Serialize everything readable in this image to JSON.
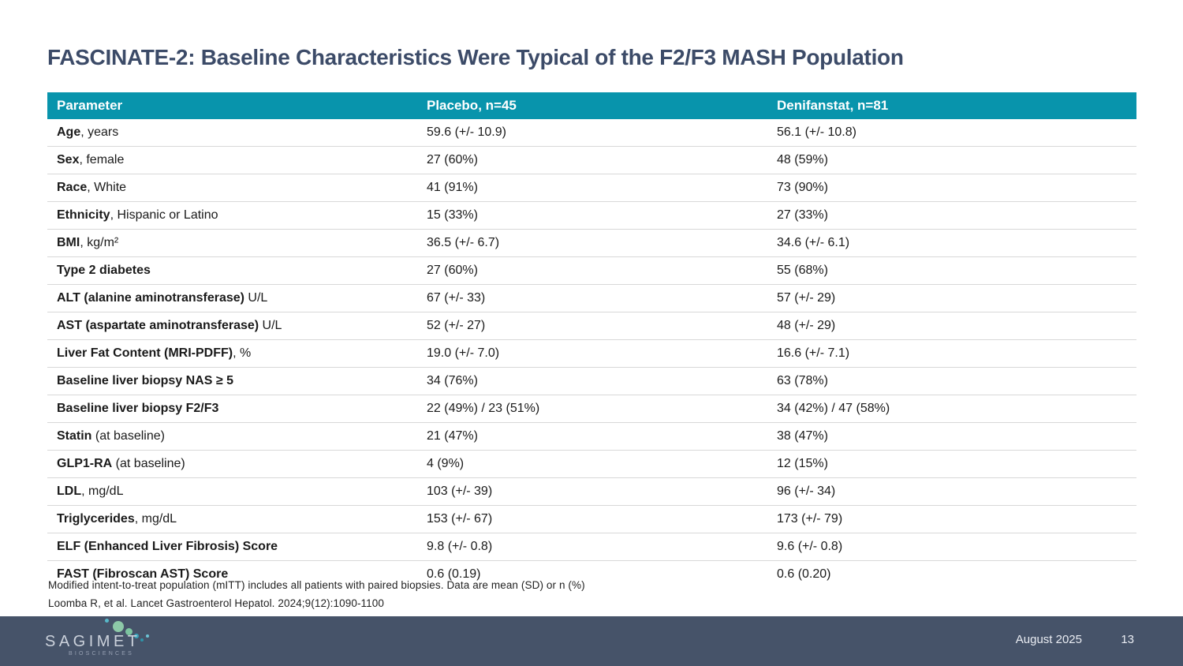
{
  "slide": {
    "title": "FASCINATE-2: Baseline Characteristics Were Typical of the F2/F3 MASH Population"
  },
  "table": {
    "columns": [
      "Parameter",
      "Placebo, n=45",
      "Denifanstat, n=81"
    ],
    "rows": [
      {
        "param_bold": "Age",
        "param_rest": ", years",
        "placebo": "59.6 (+/- 10.9)",
        "denifanstat": "56.1 (+/- 10.8)"
      },
      {
        "param_bold": "Sex",
        "param_rest": ", female",
        "placebo": "27 (60%)",
        "denifanstat": "48 (59%)"
      },
      {
        "param_bold": "Race",
        "param_rest": ", White",
        "placebo": "41 (91%)",
        "denifanstat": "73 (90%)"
      },
      {
        "param_bold": "Ethnicity",
        "param_rest": ", Hispanic or Latino",
        "placebo": "15 (33%)",
        "denifanstat": "27 (33%)"
      },
      {
        "param_bold": "BMI",
        "param_rest": ", kg/m²",
        "placebo": "36.5 (+/- 6.7)",
        "denifanstat": "34.6 (+/- 6.1)"
      },
      {
        "param_bold": "Type 2 diabetes",
        "param_rest": "",
        "placebo": "27 (60%)",
        "denifanstat": "55 (68%)"
      },
      {
        "param_bold": "ALT (alanine aminotransferase)",
        "param_rest": " U/L",
        "placebo": "67 (+/- 33)",
        "denifanstat": "57 (+/- 29)"
      },
      {
        "param_bold": "AST (aspartate aminotransferase)",
        "param_rest": " U/L",
        "placebo": "52 (+/- 27)",
        "denifanstat": "48 (+/- 29)"
      },
      {
        "param_bold": "Liver Fat Content (MRI-PDFF)",
        "param_rest": ", %",
        "placebo": "19.0 (+/- 7.0)",
        "denifanstat": "16.6 (+/- 7.1)"
      },
      {
        "param_bold": "Baseline liver biopsy NAS ≥ 5",
        "param_rest": "",
        "placebo": "34 (76%)",
        "denifanstat": "63 (78%)"
      },
      {
        "param_bold": "Baseline liver biopsy F2/F3",
        "param_rest": "",
        "placebo": "22 (49%) / 23 (51%)",
        "denifanstat": "34 (42%) / 47 (58%)"
      },
      {
        "param_bold": "Statin",
        "param_rest": " (at baseline)",
        "placebo": "21 (47%)",
        "denifanstat": "38 (47%)"
      },
      {
        "param_bold": "GLP1-RA",
        "param_rest": " (at baseline)",
        "placebo": "4 (9%)",
        "denifanstat": "12 (15%)"
      },
      {
        "param_bold": "LDL",
        "param_rest": ", mg/dL",
        "placebo": "103 (+/- 39)",
        "denifanstat": "96 (+/- 34)"
      },
      {
        "param_bold": "Triglycerides",
        "param_rest": ", mg/dL",
        "placebo": "153 (+/- 67)",
        "denifanstat": "173 (+/- 79)"
      },
      {
        "param_bold": "ELF (Enhanced Liver Fibrosis) Score",
        "param_rest": "",
        "placebo": "9.8 (+/- 0.8)",
        "denifanstat": "9.6 (+/- 0.8)"
      },
      {
        "param_bold": "FAST (Fibroscan AST) Score",
        "param_rest": "",
        "placebo": "0.6 (0.19)",
        "denifanstat": "0.6 (0.20)"
      }
    ]
  },
  "footnotes": [
    "Modified intent-to-treat population (mITT) includes all patients with paired biopsies. Data are mean (SD) or n (%)",
    "Loomba R, et al. Lancet Gastroenterol Hepatol. 2024;9(12):1090-1100"
  ],
  "footer": {
    "brand": "SAGIMET",
    "brand_sub": "BIOSCIENCES",
    "date": "August 2025",
    "page_number": "13"
  },
  "colors": {
    "header_teal": "#0894AC",
    "title_navy": "#3C4B68",
    "footer_bar": "#465369",
    "row_divider": "#D8D8D8"
  }
}
